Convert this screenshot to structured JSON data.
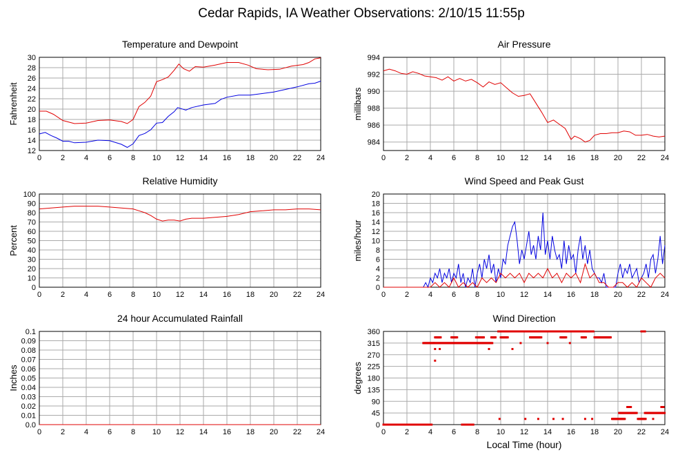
{
  "title": "Cedar Rapids, IA Weather Observations: 2/10/15 11:55p",
  "colors": {
    "red": "#e00000",
    "blue": "#0000e0",
    "grid": "#aaaaaa"
  },
  "chart_data": [
    {
      "id": "temp",
      "type": "line",
      "title": "Temperature and Dewpoint",
      "ylabel": "Fahrenheit",
      "xlabel": "",
      "xlim": [
        0,
        24
      ],
      "ylim": [
        12,
        30
      ],
      "xticks": [
        "0",
        "2",
        "4",
        "6",
        "8",
        "10",
        "12",
        "14",
        "16",
        "18",
        "20",
        "22",
        "24"
      ],
      "yticks": [
        "12",
        "14",
        "16",
        "18",
        "20",
        "22",
        "24",
        "26",
        "28",
        "30"
      ],
      "series": [
        {
          "color": "#e00000",
          "x": [
            0,
            0.6,
            1.2,
            2,
            3,
            4,
            5,
            6,
            7,
            7.5,
            8,
            8.5,
            9,
            9.5,
            10,
            10.5,
            11,
            11.5,
            11.9,
            12.3,
            12.8,
            13.3,
            14,
            15,
            16,
            17,
            17.8,
            18.5,
            19.5,
            20.5,
            21.5,
            22.5,
            23,
            23.5,
            24
          ],
          "y": [
            19.6,
            19.6,
            19.0,
            17.8,
            17.2,
            17.3,
            17.8,
            17.9,
            17.6,
            17.2,
            18.0,
            20.5,
            21.3,
            22.5,
            25.3,
            25.7,
            26.2,
            27.5,
            28.7,
            27.8,
            27.3,
            28.2,
            28.1,
            28.5,
            29.0,
            29.0,
            28.5,
            27.8,
            27.6,
            27.7,
            28.3,
            28.6,
            29.0,
            29.7,
            29.9
          ]
        },
        {
          "color": "#0000e0",
          "x": [
            0,
            0.5,
            1,
            1.5,
            2,
            2.5,
            3,
            4,
            5,
            6,
            7,
            7.5,
            8,
            8.5,
            9,
            9.5,
            10,
            10.5,
            11,
            11.5,
            11.8,
            12.5,
            13,
            14,
            15,
            15.5,
            16,
            17,
            18,
            19,
            20,
            21,
            22,
            23,
            23.5,
            24
          ],
          "y": [
            15.2,
            15.5,
            14.9,
            14.4,
            13.8,
            13.8,
            13.5,
            13.6,
            14.0,
            13.9,
            13.2,
            12.6,
            13.3,
            14.9,
            15.3,
            16.0,
            17.3,
            17.4,
            18.6,
            19.5,
            20.3,
            19.8,
            20.3,
            20.8,
            21.1,
            21.9,
            22.3,
            22.7,
            22.7,
            23.0,
            23.3,
            23.8,
            24.3,
            24.9,
            25.0,
            25.4
          ]
        }
      ]
    },
    {
      "id": "pressure",
      "type": "line",
      "title": "Air Pressure",
      "ylabel": "millibars",
      "xlabel": "",
      "xlim": [
        0,
        24
      ],
      "ylim": [
        983,
        994
      ],
      "xticks": [
        "0",
        "2",
        "4",
        "6",
        "8",
        "10",
        "12",
        "14",
        "16",
        "18",
        "20",
        "22",
        "24"
      ],
      "yticks": [
        "984",
        "986",
        "988",
        "990",
        "992",
        "994"
      ],
      "series": [
        {
          "color": "#e00000",
          "x": [
            0,
            0.5,
            1,
            1.5,
            2,
            2.5,
            3,
            3.5,
            4,
            4.5,
            5,
            5.5,
            6,
            6.5,
            7,
            7.5,
            8,
            8.5,
            9,
            9.5,
            10,
            10.5,
            11,
            11.5,
            12,
            12.5,
            13,
            13.5,
            14,
            14.5,
            15,
            15.5,
            16,
            16.3,
            16.8,
            17.2,
            17.6,
            18,
            18.5,
            19,
            19.5,
            20,
            20.5,
            21,
            21.5,
            22,
            22.5,
            23,
            23.5,
            24
          ],
          "y": [
            992.4,
            992.6,
            992.4,
            992.1,
            992.0,
            992.3,
            992.1,
            991.8,
            991.7,
            991.6,
            991.3,
            991.7,
            991.2,
            991.5,
            991.2,
            991.4,
            991.0,
            990.5,
            991.1,
            990.8,
            991.0,
            990.4,
            989.8,
            989.4,
            989.5,
            989.7,
            988.6,
            987.5,
            986.3,
            986.6,
            986.1,
            985.6,
            984.3,
            984.7,
            984.4,
            984.0,
            984.2,
            984.8,
            985.0,
            985.0,
            985.1,
            985.1,
            985.3,
            985.2,
            984.8,
            984.8,
            984.9,
            984.7,
            984.6,
            984.7
          ]
        }
      ]
    },
    {
      "id": "humidity",
      "type": "line",
      "title": "Relative Humidity",
      "ylabel": "Percent",
      "xlabel": "",
      "xlim": [
        0,
        24
      ],
      "ylim": [
        0,
        100
      ],
      "xticks": [
        "0",
        "2",
        "4",
        "6",
        "8",
        "10",
        "12",
        "14",
        "16",
        "18",
        "20",
        "22",
        "24"
      ],
      "yticks": [
        "0",
        "10",
        "20",
        "30",
        "40",
        "50",
        "60",
        "70",
        "80",
        "90",
        "100"
      ],
      "series": [
        {
          "color": "#e00000",
          "x": [
            0,
            1,
            2,
            3,
            4,
            5,
            6,
            7,
            8,
            8.5,
            9,
            9.5,
            10,
            10.5,
            11,
            11.5,
            12,
            12.5,
            13,
            14,
            15,
            16,
            17,
            18,
            19,
            20,
            21,
            22,
            23,
            24
          ],
          "y": [
            84,
            85,
            86,
            87,
            87,
            87,
            86,
            85,
            84,
            82,
            80,
            77,
            73,
            71,
            72,
            72,
            71,
            73,
            74,
            74,
            75,
            76,
            78,
            81,
            82,
            83,
            83,
            84,
            84,
            83
          ]
        }
      ]
    },
    {
      "id": "wind",
      "type": "line",
      "title": "Wind Speed and Peak Gust",
      "ylabel": "miles/hour",
      "xlabel": "",
      "xlim": [
        0,
        24
      ],
      "ylim": [
        0,
        20
      ],
      "xticks": [
        "0",
        "2",
        "4",
        "6",
        "8",
        "10",
        "12",
        "14",
        "16",
        "18",
        "20",
        "22",
        "24"
      ],
      "yticks": [
        "0",
        "2",
        "4",
        "6",
        "8",
        "10",
        "12",
        "14",
        "16",
        "18",
        "20"
      ],
      "series": [
        {
          "color": "#0000e0",
          "x": [
            0,
            1,
            2,
            3,
            3.4,
            3.6,
            3.8,
            4,
            4.2,
            4.4,
            4.6,
            4.8,
            5,
            5.2,
            5.4,
            5.6,
            5.8,
            6,
            6.2,
            6.4,
            6.6,
            6.8,
            7,
            7.2,
            7.4,
            7.6,
            7.8,
            8,
            8.2,
            8.4,
            8.6,
            8.8,
            9,
            9.2,
            9.4,
            9.6,
            9.8,
            10,
            10.2,
            10.4,
            10.6,
            10.8,
            11,
            11.2,
            11.4,
            11.6,
            11.8,
            12,
            12.2,
            12.4,
            12.6,
            12.8,
            13,
            13.2,
            13.4,
            13.6,
            13.8,
            14,
            14.2,
            14.4,
            14.6,
            14.8,
            15,
            15.2,
            15.4,
            15.6,
            15.8,
            16,
            16.2,
            16.4,
            16.6,
            16.8,
            17,
            17.2,
            17.4,
            17.6,
            17.8,
            18,
            18.2,
            18.4,
            18.6,
            18.8,
            19,
            19.2,
            19.4,
            19.6,
            19.8,
            20,
            20.2,
            20.4,
            20.6,
            20.8,
            21,
            21.2,
            21.4,
            21.6,
            21.8,
            22,
            22.2,
            22.4,
            22.6,
            22.8,
            23,
            23.2,
            23.4,
            23.6,
            23.8,
            24
          ],
          "y": [
            0,
            0,
            0,
            0,
            0,
            1,
            0,
            2,
            1,
            3,
            2,
            4,
            1,
            3,
            2,
            4,
            1,
            3,
            2,
            5,
            1,
            3,
            0,
            2,
            1,
            4,
            0,
            3,
            5,
            2,
            6,
            4,
            7,
            3,
            5,
            1,
            4,
            2,
            6,
            5,
            9,
            11,
            13,
            14,
            10,
            5,
            8,
            6,
            9,
            12,
            7,
            9,
            6,
            11,
            8,
            16,
            7,
            10,
            6,
            11,
            8,
            6,
            7,
            4,
            10,
            5,
            9,
            6,
            7,
            3,
            8,
            11,
            6,
            9,
            5,
            8,
            4,
            3,
            2,
            2,
            1,
            3,
            0,
            0,
            0,
            0,
            0,
            3,
            5,
            2,
            4,
            3,
            5,
            2,
            3,
            4,
            1,
            2,
            3,
            5,
            2,
            6,
            7,
            3,
            6,
            11,
            5,
            9
          ]
        },
        {
          "color": "#e00000",
          "x": [
            0,
            3,
            3.6,
            4,
            4.4,
            4.8,
            5.2,
            5.6,
            6,
            6.4,
            6.8,
            7.2,
            7.6,
            8,
            8.4,
            8.8,
            9.2,
            9.6,
            10,
            10.4,
            10.8,
            11.2,
            11.6,
            12,
            12.4,
            12.8,
            13.2,
            13.6,
            14,
            14.4,
            14.8,
            15.2,
            15.6,
            16,
            16.4,
            16.8,
            17.2,
            17.6,
            18,
            18.4,
            18.8,
            19.2,
            19.6,
            20,
            20.4,
            20.8,
            21.2,
            21.6,
            22,
            22.4,
            22.8,
            23.2,
            23.6,
            24
          ],
          "y": [
            0,
            0,
            0,
            0,
            1,
            0,
            1,
            0,
            2,
            0,
            1,
            0,
            1,
            0,
            2,
            1,
            2,
            1,
            3,
            2,
            3,
            2,
            3,
            1,
            3,
            2,
            3,
            2,
            4,
            2,
            3,
            1,
            3,
            2,
            3,
            1,
            5,
            2,
            3,
            1,
            1,
            0,
            0,
            1,
            1,
            0,
            1,
            0,
            2,
            1,
            0,
            2,
            3,
            2
          ]
        }
      ]
    },
    {
      "id": "rain",
      "type": "line",
      "title": "24 hour Accumulated Rainfall",
      "ylabel": "Inches",
      "xlabel": "",
      "xlim": [
        0,
        24
      ],
      "ylim": [
        0,
        0.1
      ],
      "xticks": [
        "0",
        "2",
        "4",
        "6",
        "8",
        "10",
        "12",
        "14",
        "16",
        "18",
        "20",
        "22",
        "24"
      ],
      "yticks": [
        "0.0",
        "0.01",
        "0.02",
        "0.03",
        "0.04",
        "0.05",
        "0.06",
        "0.07",
        "0.08",
        "0.09",
        "0.1"
      ],
      "series": [
        {
          "color": "#e00000",
          "x": [
            0,
            24
          ],
          "y": [
            0,
            0
          ]
        }
      ]
    },
    {
      "id": "direction",
      "type": "scatter",
      "title": "Wind Direction",
      "ylabel": "degrees",
      "xlabel": "Local Time (hour)",
      "xlim": [
        0,
        24
      ],
      "ylim": [
        0,
        360
      ],
      "xticks": [
        "0",
        "2",
        "4",
        "6",
        "8",
        "10",
        "12",
        "14",
        "16",
        "18",
        "20",
        "22",
        "24"
      ],
      "yticks": [
        "0",
        "45",
        "90",
        "135",
        "180",
        "225",
        "270",
        "315",
        "360"
      ],
      "series": [
        {
          "color": "#e00000",
          "segments": [
            [
              0,
              3.4,
              0
            ],
            [
              3.5,
              4.1,
              0
            ],
            [
              6.7,
              7.7,
              0
            ],
            [
              3.4,
              4.3,
              315
            ],
            [
              4.3,
              9.3,
              315
            ],
            [
              4.4,
              4.9,
              337
            ],
            [
              5.8,
              6.3,
              337
            ],
            [
              7.9,
              8.6,
              337
            ],
            [
              9.2,
              9.6,
              337
            ],
            [
              10.0,
              10.6,
              337
            ],
            [
              12.5,
              13.5,
              337
            ],
            [
              15.1,
              15.6,
              337
            ],
            [
              16.9,
              17.3,
              337
            ],
            [
              18.0,
              19.4,
              337
            ],
            [
              9.8,
              17.9,
              360
            ],
            [
              22.0,
              22.3,
              360
            ],
            [
              20.1,
              21.6,
              45
            ],
            [
              22.3,
              24.0,
              45
            ],
            [
              19.5,
              20.6,
              22
            ],
            [
              21.7,
              22.4,
              22
            ],
            [
              20.8,
              21.1,
              68
            ],
            [
              23.7,
              23.9,
              68
            ]
          ],
          "points": [
            [
              4.4,
              247
            ],
            [
              4.4,
              292
            ],
            [
              4.8,
              292
            ],
            [
              9.0,
              292
            ],
            [
              11.0,
              292
            ],
            [
              11.7,
              315
            ],
            [
              14.0,
              315
            ],
            [
              15.9,
              315
            ],
            [
              9.9,
              22
            ],
            [
              12.1,
              22
            ],
            [
              13.2,
              22
            ],
            [
              14.5,
              22
            ],
            [
              15.3,
              22
            ],
            [
              17.2,
              22
            ],
            [
              17.8,
              22
            ],
            [
              23.0,
              22
            ],
            [
              0.4,
              0
            ],
            [
              2.4,
              0
            ]
          ]
        }
      ]
    }
  ]
}
